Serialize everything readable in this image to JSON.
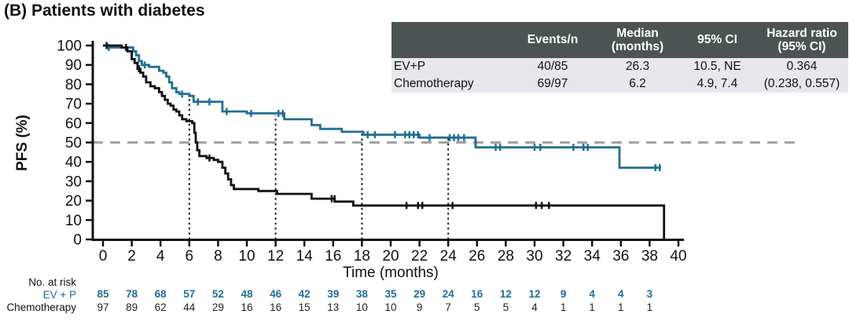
{
  "title": "(B) Patients with diabetes",
  "colors": {
    "evp": "#226e93",
    "chemotherapy": "#111111",
    "reference_dash": "#a3a3a3",
    "landmark_dot": "#1a1a1a",
    "table_header_bg": "#4b5452",
    "table_header_text": "#ffffff",
    "table_body_bg": "#e8e8ec"
  },
  "summary_table": {
    "headers": [
      {
        "l1": "",
        "l2": ""
      },
      {
        "l1": "Events/n",
        "l2": ""
      },
      {
        "l1": "Median",
        "l2": "(months)"
      },
      {
        "l1": "95% CI",
        "l2": ""
      },
      {
        "l1": "Hazard ratio",
        "l2": "(95% CI)"
      }
    ],
    "rows": [
      {
        "label": "EV+P",
        "events_n": "40/85",
        "median": "26.3",
        "ci": "10.5, NE",
        "hr": "0.364"
      },
      {
        "label": "Chemotherapy",
        "events_n": "69/97",
        "median": "6.2",
        "ci": "4.9, 7.4",
        "hr": "(0.238, 0.557)"
      }
    ]
  },
  "chart_data": {
    "type": "line",
    "subtype": "kaplan-meier-step",
    "title": "(B) Patients with diabetes",
    "xlabel": "Time (months)",
    "ylabel": "PFS (%)",
    "xlim": [
      0,
      40
    ],
    "ylim": [
      0,
      100
    ],
    "x_ticks": [
      0,
      2,
      4,
      6,
      8,
      10,
      12,
      14,
      16,
      18,
      20,
      22,
      24,
      26,
      28,
      30,
      32,
      34,
      36,
      38,
      40
    ],
    "y_ticks": [
      0,
      10,
      20,
      30,
      40,
      50,
      60,
      70,
      80,
      90,
      100
    ],
    "grid": false,
    "legend_position": "none",
    "reference_line_y": 50,
    "landmark_lines": [
      {
        "x": 6,
        "top_y": 74
      },
      {
        "x": 12,
        "top_y": 64
      },
      {
        "x": 18,
        "top_y": 55
      },
      {
        "x": 24,
        "top_y": 53
      }
    ],
    "series": [
      {
        "name": "EV+P",
        "color": "#226e93",
        "steps": [
          [
            0,
            100
          ],
          [
            0.4,
            100
          ],
          [
            0.4,
            99
          ],
          [
            2.1,
            99
          ],
          [
            2.1,
            97
          ],
          [
            2.3,
            97
          ],
          [
            2.3,
            95
          ],
          [
            2.5,
            95
          ],
          [
            2.5,
            92
          ],
          [
            2.7,
            92
          ],
          [
            2.7,
            90
          ],
          [
            3.2,
            90
          ],
          [
            3.2,
            89
          ],
          [
            3.9,
            89
          ],
          [
            3.9,
            87
          ],
          [
            4.2,
            87
          ],
          [
            4.2,
            86
          ],
          [
            4.4,
            86
          ],
          [
            4.4,
            84
          ],
          [
            4.6,
            84
          ],
          [
            4.6,
            81
          ],
          [
            4.8,
            81
          ],
          [
            4.8,
            78
          ],
          [
            5.1,
            78
          ],
          [
            5.1,
            76
          ],
          [
            5.3,
            76
          ],
          [
            5.3,
            75
          ],
          [
            6.0,
            75
          ],
          [
            6.0,
            74
          ],
          [
            6.3,
            74
          ],
          [
            6.3,
            71
          ],
          [
            8.3,
            71
          ],
          [
            8.3,
            66
          ],
          [
            10.0,
            66
          ],
          [
            10.0,
            65
          ],
          [
            12.6,
            65
          ],
          [
            12.6,
            62
          ],
          [
            14.5,
            62
          ],
          [
            14.5,
            59
          ],
          [
            15.1,
            59
          ],
          [
            15.1,
            57
          ],
          [
            16.6,
            57
          ],
          [
            16.6,
            55.5
          ],
          [
            18.1,
            55.5
          ],
          [
            18.1,
            54
          ],
          [
            22.0,
            54
          ],
          [
            22.0,
            52.5
          ],
          [
            25.9,
            52.5
          ],
          [
            25.9,
            47.5
          ],
          [
            35.9,
            47.5
          ],
          [
            35.9,
            37
          ],
          [
            38.8,
            37
          ]
        ],
        "censors": [
          [
            0.4,
            99
          ],
          [
            2.9,
            90
          ],
          [
            5.5,
            75
          ],
          [
            6.6,
            71
          ],
          [
            7.4,
            71
          ],
          [
            8.6,
            66
          ],
          [
            10.3,
            65
          ],
          [
            12.2,
            65
          ],
          [
            12.5,
            65
          ],
          [
            18.4,
            54
          ],
          [
            18.9,
            54
          ],
          [
            20.3,
            54
          ],
          [
            21.0,
            54
          ],
          [
            21.3,
            54
          ],
          [
            21.6,
            54
          ],
          [
            21.9,
            54
          ],
          [
            22.7,
            52.5
          ],
          [
            24.1,
            52.5
          ],
          [
            24.4,
            52.5
          ],
          [
            24.7,
            52.5
          ],
          [
            25.1,
            52.5
          ],
          [
            27.3,
            47.5
          ],
          [
            27.6,
            47.5
          ],
          [
            30.0,
            47.5
          ],
          [
            30.4,
            47.5
          ],
          [
            32.7,
            47.5
          ],
          [
            33.4,
            47.5
          ],
          [
            33.7,
            47.5
          ],
          [
            38.4,
            37
          ],
          [
            38.7,
            37
          ]
        ]
      },
      {
        "name": "Chemotherapy",
        "color": "#111111",
        "steps": [
          [
            0,
            100
          ],
          [
            1.3,
            100
          ],
          [
            1.3,
            99
          ],
          [
            1.7,
            99
          ],
          [
            1.7,
            97
          ],
          [
            2.0,
            97
          ],
          [
            2.0,
            93
          ],
          [
            2.2,
            93
          ],
          [
            2.2,
            91
          ],
          [
            2.4,
            91
          ],
          [
            2.4,
            88
          ],
          [
            2.6,
            88
          ],
          [
            2.6,
            86
          ],
          [
            2.8,
            86
          ],
          [
            2.8,
            84
          ],
          [
            3.0,
            84
          ],
          [
            3.0,
            81
          ],
          [
            3.3,
            81
          ],
          [
            3.3,
            79
          ],
          [
            3.6,
            79
          ],
          [
            3.6,
            78
          ],
          [
            3.9,
            78
          ],
          [
            3.9,
            76
          ],
          [
            4.1,
            76
          ],
          [
            4.1,
            74
          ],
          [
            4.3,
            74
          ],
          [
            4.3,
            72
          ],
          [
            4.5,
            72
          ],
          [
            4.5,
            70
          ],
          [
            4.7,
            70
          ],
          [
            4.7,
            69
          ],
          [
            4.9,
            69
          ],
          [
            4.9,
            67
          ],
          [
            5.1,
            67
          ],
          [
            5.1,
            66
          ],
          [
            5.3,
            66
          ],
          [
            5.3,
            64
          ],
          [
            5.5,
            64
          ],
          [
            5.5,
            62
          ],
          [
            5.8,
            62
          ],
          [
            5.8,
            61
          ],
          [
            6.2,
            61
          ],
          [
            6.2,
            60
          ],
          [
            6.35,
            60
          ],
          [
            6.35,
            55
          ],
          [
            6.45,
            55
          ],
          [
            6.45,
            50
          ],
          [
            6.55,
            50
          ],
          [
            6.55,
            46
          ],
          [
            6.7,
            46
          ],
          [
            6.7,
            43
          ],
          [
            7.2,
            43
          ],
          [
            7.2,
            42
          ],
          [
            7.7,
            42
          ],
          [
            7.7,
            41
          ],
          [
            8.0,
            41
          ],
          [
            8.0,
            40
          ],
          [
            8.3,
            40
          ],
          [
            8.3,
            37
          ],
          [
            8.5,
            37
          ],
          [
            8.5,
            34
          ],
          [
            8.7,
            34
          ],
          [
            8.7,
            31
          ],
          [
            8.9,
            31
          ],
          [
            8.9,
            28
          ],
          [
            9.1,
            28
          ],
          [
            9.1,
            26
          ],
          [
            10.8,
            26
          ],
          [
            10.8,
            25
          ],
          [
            12.1,
            25
          ],
          [
            12.1,
            23.5
          ],
          [
            14.5,
            23.5
          ],
          [
            14.5,
            21
          ],
          [
            16.1,
            21
          ],
          [
            16.1,
            19.5
          ],
          [
            17.4,
            19.5
          ],
          [
            17.4,
            17.5
          ],
          [
            39.0,
            17.5
          ],
          [
            39.0,
            0
          ]
        ],
        "censors": [
          [
            0.25,
            100
          ],
          [
            1.6,
            99
          ],
          [
            2.5,
            88
          ],
          [
            7.4,
            42
          ],
          [
            15.9,
            21
          ],
          [
            16.1,
            21
          ],
          [
            21.1,
            17.5
          ],
          [
            21.9,
            17.5
          ],
          [
            22.2,
            17.5
          ],
          [
            24.3,
            17.5
          ],
          [
            30.1,
            17.5
          ],
          [
            30.5,
            17.5
          ],
          [
            31.0,
            17.5
          ]
        ]
      }
    ],
    "at_risk": {
      "label": "No. at risk",
      "times": [
        0,
        2,
        4,
        6,
        8,
        10,
        12,
        14,
        16,
        18,
        20,
        22,
        24,
        26,
        28,
        30,
        32,
        34,
        36,
        38
      ],
      "rows": [
        {
          "name": "EV + P",
          "color": "#226e93",
          "bold": true,
          "values": [
            85,
            78,
            68,
            57,
            52,
            48,
            46,
            42,
            39,
            38,
            35,
            29,
            24,
            16,
            12,
            12,
            9,
            4,
            4,
            3
          ]
        },
        {
          "name": "Chemotherapy",
          "color": "#222222",
          "bold": false,
          "values": [
            97,
            89,
            62,
            44,
            29,
            16,
            16,
            15,
            13,
            10,
            10,
            9,
            7,
            5,
            5,
            4,
            1,
            1,
            1,
            1
          ]
        }
      ]
    }
  }
}
